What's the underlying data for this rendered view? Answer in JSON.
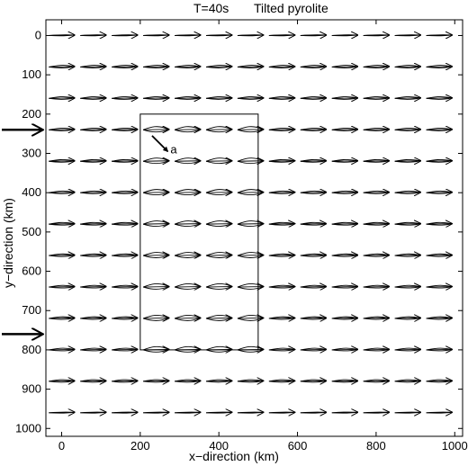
{
  "chart_data": {
    "type": "scatter",
    "title_left": "T=40s",
    "title_right": "Tilted pyrolite",
    "xlabel": "x−direction (km)",
    "ylabel": "y−direction (km)",
    "xlim": [
      -40,
      1020
    ],
    "ylim": [
      1020,
      -40
    ],
    "y_reversed": true,
    "grid": false,
    "x_ticks": [
      0,
      200,
      400,
      600,
      800,
      1000
    ],
    "x_tick_labels": [
      "0",
      "200",
      "400",
      "600",
      "800",
      "1000"
    ],
    "y_ticks": [
      0,
      100,
      200,
      300,
      400,
      500,
      600,
      700,
      800,
      900,
      1000
    ],
    "y_tick_labels": [
      "0",
      "100",
      "200",
      "300",
      "400",
      "500",
      "600",
      "700",
      "800",
      "900",
      "1000"
    ],
    "grid_x": [
      0,
      80,
      160,
      240,
      320,
      400,
      480,
      560,
      640,
      720,
      800,
      880,
      960
    ],
    "grid_y": [
      0,
      80,
      160,
      240,
      320,
      400,
      480,
      560,
      640,
      720,
      800,
      880,
      960
    ],
    "vector_direction": "+x",
    "vector_length_km": 65,
    "region_box": {
      "x0": 200,
      "x1": 500,
      "y0": 200,
      "y1": 800
    },
    "source_arrows_y": [
      240,
      760
    ],
    "annotation": {
      "text": "a",
      "x_from": 230,
      "y_from": 255,
      "x_to": 270,
      "y_to": 295
    }
  }
}
